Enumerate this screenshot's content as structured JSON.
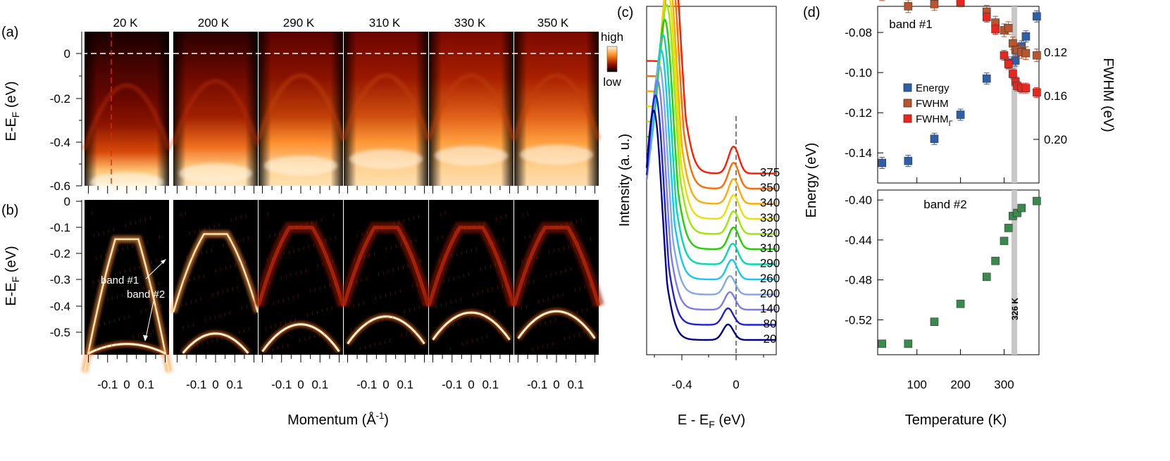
{
  "panel_labels": [
    "(a)",
    "(b)",
    "(c)",
    "(d)"
  ],
  "colorbar": {
    "high": "high",
    "low": "low"
  },
  "panel_a": {
    "temperatures": [
      "20 K",
      "200 K",
      "290 K",
      "310 K",
      "330 K",
      "350 K"
    ],
    "ylabel_main": "E-E",
    "ylabel_sub": "F",
    "ylabel_tail": " (eV)",
    "yticks": [
      "0",
      "-0.2",
      "-0.4",
      "-0.6"
    ]
  },
  "panel_b": {
    "ylabel_main": "E-E",
    "ylabel_sub": "F",
    "ylabel_tail": " (eV)",
    "yticks": [
      "0",
      "-0.1",
      "-0.2",
      "-0.3",
      "-0.4",
      "-0.5"
    ],
    "xtick_labels": [
      "-0.1",
      "0",
      "0.1"
    ],
    "annotations": [
      "band #1",
      "band #2"
    ],
    "xlabel_main": "Momentum (Å",
    "xlabel_sup": "-1",
    "xlabel_tail": ")"
  },
  "chart_data": [
    {
      "type": "heatmap",
      "panel": "(a)",
      "description_of_axes": "momentum vs energy ARPES intensity maps",
      "ylabel": "E-EF (eV)",
      "ylim": [
        -0.6,
        0.1
      ],
      "temperatures_K": [
        20,
        200,
        290,
        310,
        330,
        350
      ],
      "colorscale": [
        "#000000",
        "#8a0a00",
        "#ff7a10",
        "#fff4d8"
      ]
    },
    {
      "type": "heatmap",
      "panel": "(b)",
      "ylabel": "E-EF (eV)",
      "xlabel": "Momentum (Å-1)",
      "ylim": [
        -0.58,
        0
      ],
      "xlim": [
        -0.22,
        0.22
      ],
      "band1_top_energy_eV": [
        -0.145,
        -0.125,
        -0.1,
        -0.1,
        -0.1,
        -0.1
      ],
      "band2_top_energy_eV": [
        -0.545,
        -0.505,
        -0.47,
        -0.44,
        -0.425,
        -0.42
      ]
    },
    {
      "type": "line",
      "panel": "(c)",
      "xlabel": "E - EF (eV)",
      "ylabel": "Intensity (a. u.)",
      "xlim": [
        -0.57,
        0.13
      ],
      "xticks": [
        "-0.4",
        "0"
      ],
      "series_labels": [
        "375",
        "350",
        "340",
        "330",
        "320",
        "310",
        "290",
        "260",
        "200",
        "140",
        "80",
        "20"
      ],
      "colors": [
        "#ff1a00",
        "#ff6a00",
        "#ffaa00",
        "#e8e000",
        "#9be800",
        "#22d000",
        "#00d8b0",
        "#10c8f0",
        "#80a8f0",
        "#7b7bf0",
        "#2020d8",
        "#000090"
      ],
      "peak1_position_eV": [
        -0.43,
        -0.44,
        -0.45,
        -0.455,
        -0.46,
        -0.47,
        -0.48,
        -0.49,
        -0.5,
        -0.51,
        -0.52,
        -0.53
      ],
      "peak2_position_eV": [
        -0.1,
        -0.1,
        -0.1,
        -0.1,
        -0.1,
        -0.1,
        -0.105,
        -0.11,
        -0.12,
        -0.12,
        -0.13,
        -0.13
      ]
    },
    {
      "type": "scatter",
      "panel": "(d) band #1",
      "title": "band #1",
      "ylabel": "Energy (eV)",
      "y2label": "FWHM (eV)",
      "ylim": [
        -0.155,
        -0.067
      ],
      "y2ticks": [
        "0.12",
        "0.16",
        "0.20"
      ],
      "yticks": [
        "-0.08",
        "-0.10",
        "-0.12",
        "-0.14"
      ],
      "xlim": [
        10,
        380
      ],
      "vline_T": 326,
      "legend": [
        "Energy",
        "FWHM",
        "FWHMΓ"
      ],
      "series": [
        {
          "name": "Energy",
          "color": "#2f5fa8",
          "x": [
            20,
            80,
            140,
            200,
            260,
            310,
            326,
            340,
            350,
            375
          ],
          "y": [
            -0.145,
            -0.144,
            -0.133,
            -0.121,
            -0.103,
            -0.095,
            -0.094,
            -0.087,
            -0.082,
            -0.072
          ]
        },
        {
          "name": "FWHM",
          "color": "#b8552e",
          "x": [
            20,
            80,
            140,
            200,
            260,
            280,
            300,
            310,
            320,
            326,
            330,
            340,
            350,
            375
          ],
          "y": [
            0.067,
            0.078,
            0.076,
            0.072,
            0.083,
            0.093,
            0.1,
            0.098,
            0.112,
            0.118,
            0.118,
            0.12,
            0.121,
            0.123
          ]
        },
        {
          "name": "FWHMΓ",
          "color": "#e8281e",
          "x": [
            20,
            80,
            140,
            200,
            260,
            280,
            300,
            310,
            320,
            326,
            330,
            340,
            350,
            375
          ],
          "y": [
            0.066,
            0.067,
            0.066,
            0.074,
            0.088,
            0.099,
            0.123,
            0.131,
            0.14,
            0.147,
            0.151,
            0.153,
            0.153,
            0.157
          ]
        }
      ]
    },
    {
      "type": "scatter",
      "panel": "(d) band #2",
      "title": "band #2",
      "xlabel": "Temperature (K)",
      "xticks": [
        "100",
        "200",
        "300"
      ],
      "yticks": [
        "-0.40",
        "-0.44",
        "-0.48",
        "-0.52"
      ],
      "ylim": [
        -0.555,
        -0.39
      ],
      "vline_label": "326 K",
      "series": [
        {
          "name": "band #2",
          "color": "#3a8a4e",
          "x": [
            20,
            80,
            140,
            200,
            260,
            280,
            300,
            310,
            320,
            330,
            340,
            375
          ],
          "y": [
            -0.544,
            -0.544,
            -0.522,
            -0.504,
            -0.477,
            -0.461,
            -0.441,
            -0.428,
            -0.416,
            -0.413,
            -0.408,
            -0.401
          ]
        }
      ]
    }
  ],
  "panel_c_texts": {
    "ylabel": "Intensity (a. u.)",
    "xlabel": "E - E",
    "xlabel_sub": "F",
    "xlabel_tail": " (eV)"
  },
  "panel_d_texts": {
    "band1": "band #1",
    "band2": "band #2",
    "ylabel": "Energy (eV)",
    "y2label": "FWHM (eV)",
    "xlabel": "Temperature (K)",
    "vline_label": "326 K",
    "legend_energy": "Energy",
    "legend_fwhm": "FWHM",
    "legend_fwhmg_main": "FWHM",
    "legend_fwhmg_sub": "Γ"
  }
}
